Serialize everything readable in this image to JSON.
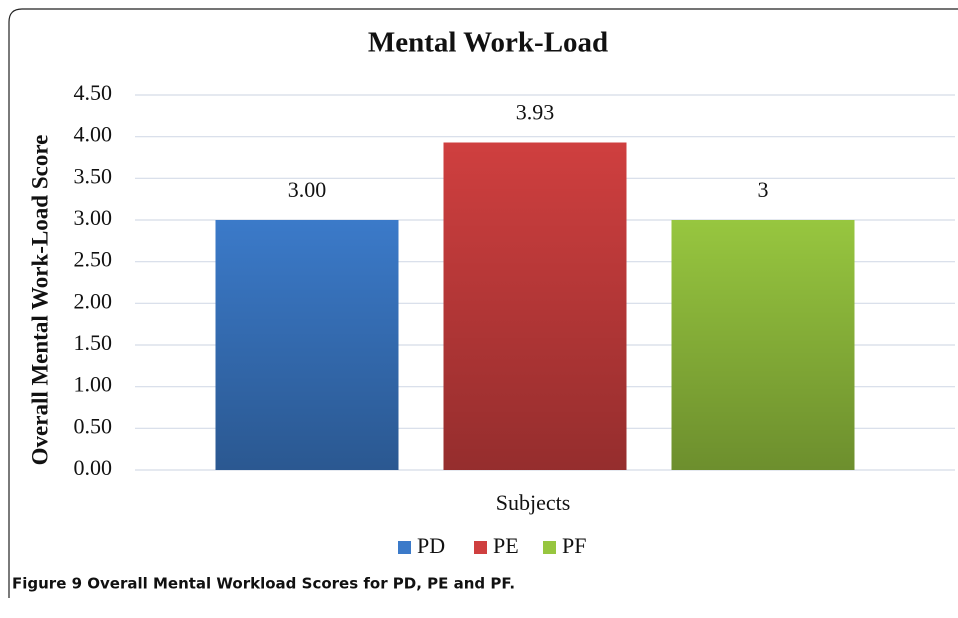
{
  "chart_data": {
    "type": "bar",
    "title": "Mental Work-Load",
    "y_label": "Overall Mental Work-Load Score",
    "categories": [
      "Subjects"
    ],
    "series": [
      {
        "name": "PD",
        "color": "#3b7ac9",
        "values": [
          3.0
        ],
        "value_labels": [
          "3.00"
        ]
      },
      {
        "name": "PE",
        "color": "#cf3f3f",
        "values": [
          3.93
        ],
        "value_labels": [
          "3.93"
        ]
      },
      {
        "name": "PF",
        "color": "#97c63f",
        "values": [
          3
        ],
        "value_labels": [
          "3"
        ]
      }
    ],
    "ylim": [
      0,
      4.5
    ],
    "yticks": [
      {
        "value": 0,
        "label": "0.00"
      },
      {
        "value": 0.5,
        "label": "0.50"
      },
      {
        "value": 1,
        "label": "1.00"
      },
      {
        "value": 1.5,
        "label": "1.50"
      },
      {
        "value": 2,
        "label": "2.00"
      },
      {
        "value": 2.5,
        "label": "2.50"
      },
      {
        "value": 3,
        "label": "3.00"
      },
      {
        "value": 3.5,
        "label": "3.50"
      },
      {
        "value": 4,
        "label": "4.00"
      },
      {
        "value": 4.5,
        "label": "4.50"
      }
    ],
    "grid": true,
    "legend": "bottom",
    "caption": "Figure 9 Overall Mental Workload Scores for PD, PE and PF."
  }
}
